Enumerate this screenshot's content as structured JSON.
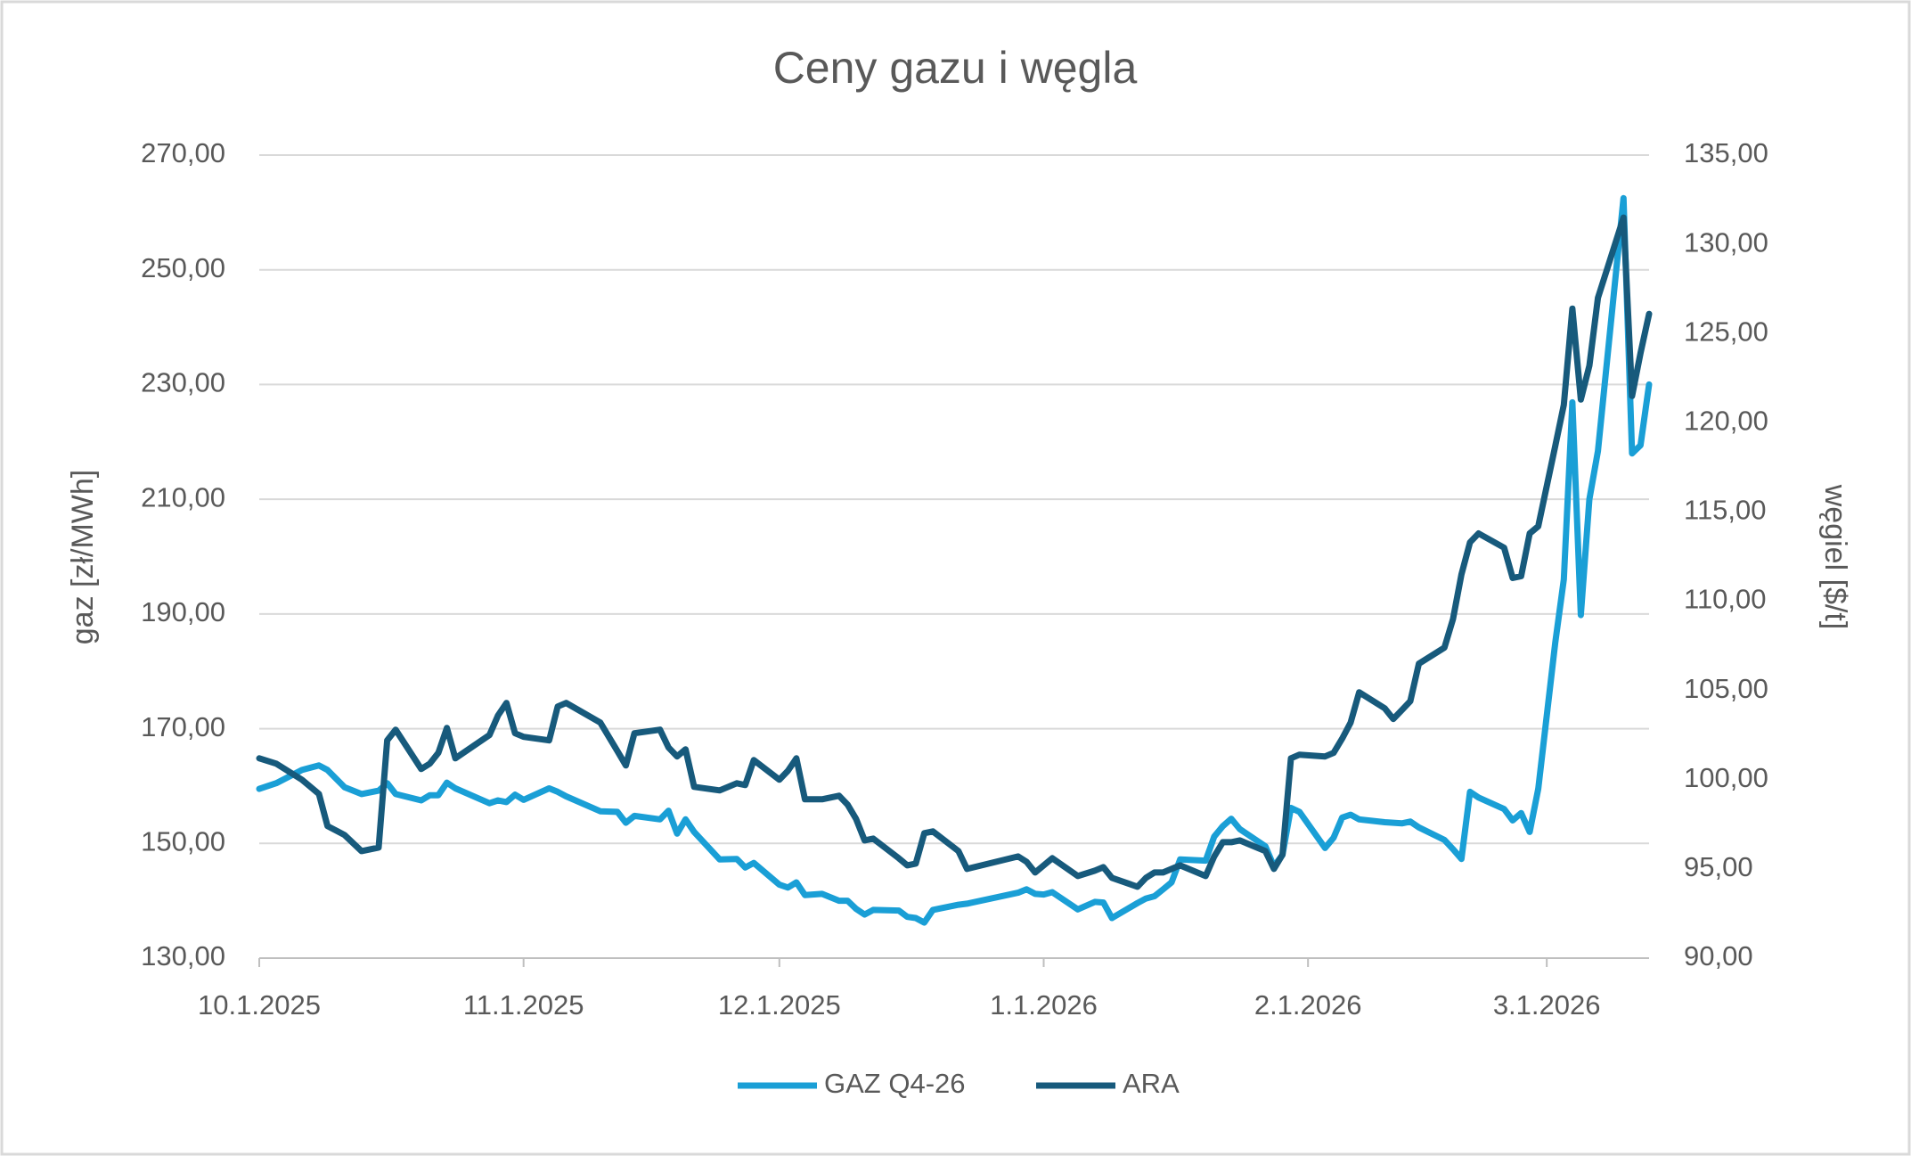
{
  "chart_data": {
    "type": "line",
    "title": "Ceny gazu i węgla",
    "ylabel": "gaz [zł/MWh]",
    "y2label": "węgiel [$/t]",
    "x": [
      "10.1.2025",
      "10.3.2025",
      "10.6.2025",
      "10.8.2025",
      "10.9.2025",
      "10.11.2025",
      "10.13.2025",
      "10.15.2025",
      "10.16.2025",
      "10.17.2025",
      "10.20.2025",
      "10.21.2025",
      "10.22.2025",
      "10.23.2025",
      "10.24.2025",
      "10.28.2025",
      "10.29.2025",
      "10.30.2025",
      "10.31.2025",
      "11.1.2025",
      "11.4.2025",
      "11.5.2025",
      "11.6.2025",
      "11.10.2025",
      "11.12.2025",
      "11.13.2025",
      "11.14.2025",
      "11.17.2025",
      "11.18.2025",
      "11.19.2025",
      "11.20.2025",
      "11.21.2025",
      "11.24.2025",
      "11.26.2025",
      "11.27.2025",
      "11.28.2025",
      "12.1.2025",
      "12.2.2025",
      "12.3.2025",
      "12.4.2025",
      "12.6.2025",
      "12.8.2025",
      "12.9.2025",
      "12.10.2025",
      "12.11.2025",
      "12.12.2025",
      "12.15.2025",
      "12.16.2025",
      "12.17.2025",
      "12.18.2025",
      "12.19.2025",
      "12.22.2025",
      "12.23.2025",
      "12.29.2025",
      "12.30.2025",
      "12.31.2025",
      "1.1.2026",
      "1.2.2026",
      "1.5.2026",
      "1.7.2026",
      "1.8.2026",
      "1.9.2026",
      "1.12.2026",
      "1.13.2026",
      "1.14.2026",
      "1.15.2026",
      "1.16.2026",
      "1.17.2026",
      "1.20.2026",
      "1.21.2026",
      "1.22.2026",
      "1.23.2026",
      "1.24.2026",
      "1.27.2026",
      "1.28.2026",
      "1.29.2026",
      "1.30.2026",
      "1.31.2026",
      "2.3.2026",
      "2.4.2026",
      "2.5.2026",
      "2.6.2026",
      "2.7.2026",
      "2.10.2026",
      "2.11.2026",
      "2.12.2026",
      "2.13.2026",
      "2.14.2026",
      "2.17.2026",
      "2.18.2026",
      "2.19.2026",
      "2.20.2026",
      "2.21.2026",
      "2.24.2026",
      "2.25.2026",
      "2.26.2026",
      "2.27.2026",
      "2.28.2026",
      "3.2.2026",
      "3.3.2026",
      "3.4.2026",
      "3.5.2026",
      "3.6.2026",
      "3.7.2026",
      "3.10.2026",
      "3.11.2026",
      "3.12.2026",
      "3.13.2026"
    ],
    "series": [
      {
        "name": "GAZ Q4-26",
        "color": "#1a9fd6",
        "axis": "y",
        "values": [
          159.5,
          160.5,
          162.8,
          163.6,
          162.8,
          159.8,
          158.6,
          159.2,
          160.5,
          158.6,
          157.5,
          158.4,
          158.4,
          160.6,
          159.6,
          157.0,
          157.5,
          157.2,
          158.5,
          157.6,
          159.6,
          159.0,
          158.2,
          155.6,
          155.5,
          153.6,
          154.8,
          154.2,
          155.7,
          151.7,
          154.2,
          152.0,
          147.2,
          147.3,
          145.8,
          146.6,
          142.8,
          142.3,
          143.2,
          141.0,
          141.2,
          140.0,
          140.0,
          138.6,
          137.6,
          138.4,
          138.3,
          137.2,
          137.0,
          136.2,
          138.4,
          139.3,
          139.5,
          141.4,
          142.0,
          141.2,
          141.1,
          141.5,
          138.5,
          139.8,
          139.7,
          137.0,
          139.6,
          140.4,
          140.8,
          142.0,
          143.2,
          147.2,
          147.0,
          151.2,
          153.0,
          154.3,
          152.5,
          149.5,
          146.0,
          148.0,
          156.2,
          155.5,
          149.2,
          151.0,
          154.5,
          155.0,
          154.2,
          153.7,
          153.6,
          153.5,
          153.8,
          152.8,
          150.6,
          149.0,
          147.3,
          159.0,
          158.0,
          156.0,
          154.0,
          155.3,
          152.0,
          159.5,
          185.0,
          196.0,
          226.9,
          189.8,
          210.0,
          218.4,
          262.5,
          218.0,
          219.4,
          230.0
        ]
      },
      {
        "name": "ARA",
        "color": "#175a7c",
        "axis": "y2",
        "values": [
          101.2,
          100.9,
          100.0,
          99.2,
          97.4,
          96.9,
          96.0,
          96.2,
          102.2,
          102.8,
          100.6,
          100.9,
          101.5,
          102.9,
          101.2,
          102.5,
          103.6,
          104.3,
          102.6,
          102.4,
          102.2,
          104.1,
          104.3,
          103.2,
          101.6,
          100.8,
          102.6,
          102.8,
          101.8,
          101.3,
          101.7,
          99.6,
          99.4,
          99.8,
          99.7,
          101.1,
          100.0,
          100.5,
          101.2,
          98.9,
          98.9,
          99.1,
          98.6,
          97.8,
          96.6,
          96.7,
          95.6,
          95.2,
          95.3,
          97.0,
          97.1,
          96.0,
          95.0,
          95.7,
          95.4,
          94.8,
          95.2,
          95.6,
          94.6,
          94.9,
          95.1,
          94.5,
          94.0,
          94.5,
          94.8,
          94.8,
          95.0,
          95.2,
          94.6,
          95.7,
          96.5,
          96.5,
          96.6,
          96.0,
          95.0,
          95.8,
          101.2,
          101.4,
          101.3,
          101.5,
          102.3,
          103.2,
          104.9,
          104.0,
          103.4,
          103.9,
          104.4,
          106.5,
          107.4,
          109.0,
          111.5,
          113.3,
          113.8,
          113.0,
          111.3,
          111.4,
          113.8,
          114.2,
          118.7,
          121.0,
          126.4,
          121.3,
          123.2,
          127.0,
          131.5,
          121.5,
          123.9,
          126.1
        ]
      }
    ],
    "xlim": [
      "10.1.2025",
      "3.13.2026"
    ],
    "xticks": [
      "10.1.2025",
      "11.1.2025",
      "12.1.2025",
      "1.1.2026",
      "2.1.2026",
      "3.1.2026"
    ],
    "ylim": [
      130,
      270
    ],
    "yticks": [
      {
        "value": 130,
        "label": "130,00"
      },
      {
        "value": 150,
        "label": "150,00"
      },
      {
        "value": 170,
        "label": "170,00"
      },
      {
        "value": 190,
        "label": "190,00"
      },
      {
        "value": 210,
        "label": "210,00"
      },
      {
        "value": 230,
        "label": "230,00"
      },
      {
        "value": 250,
        "label": "250,00"
      },
      {
        "value": 270,
        "label": "270,00"
      }
    ],
    "y2lim": [
      90,
      135
    ],
    "y2ticks": [
      {
        "value": 90,
        "label": "90,00"
      },
      {
        "value": 95,
        "label": "95,00"
      },
      {
        "value": 100,
        "label": "100,00"
      },
      {
        "value": 105,
        "label": "105,00"
      },
      {
        "value": 110,
        "label": "110,00"
      },
      {
        "value": 115,
        "label": "115,00"
      },
      {
        "value": 120,
        "label": "120,00"
      },
      {
        "value": 125,
        "label": "125,00"
      },
      {
        "value": 130,
        "label": "130,00"
      },
      {
        "value": 135,
        "label": "135,00"
      }
    ],
    "grid": true,
    "legend": "bottom"
  }
}
